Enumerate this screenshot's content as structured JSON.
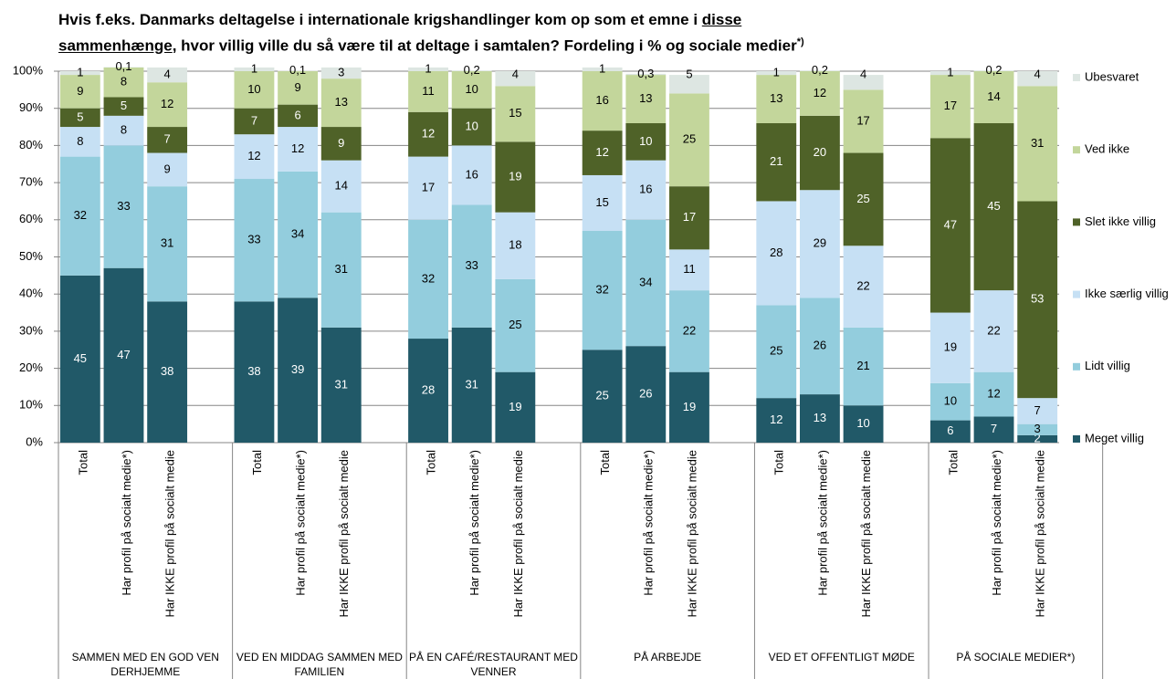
{
  "chart_data": {
    "type": "stacked-bar",
    "title": {
      "pre": "Hvis f.eks. Danmarks deltagelse i internationale krigshandlinger kom op som et emne i ",
      "under1": "disse",
      "under2": "sammenhænge",
      "post": ", hvor villig ville du så være til at deltage i samtalen? Fordeling i % og sociale medier",
      "sup": "*)"
    },
    "groups": [
      "SAMMEN MED EN GOD VEN DERHJEMME",
      "VED EN MIDDAG SAMMEN MED FAMILIEN",
      "PÅ EN CAFÉ/RESTAURANT MED VENNER",
      "PÅ ARBEJDE",
      "VED ET OFFENTLIGT MØDE",
      "PÅ SOCIALE MEDIER*)"
    ],
    "categories": [
      "Total",
      "Har profil på socialt medie*)",
      "Har IKKE profil på socialt medie",
      "Total",
      "Har profil på socialt medie*)",
      "Har IKKE profil på socialt medie",
      "Total",
      "Har profil på socialt medie*)",
      "Har IKKE profil på socialt medie",
      "Total",
      "Har profil på socialt medie*)",
      "Har IKKE profil på socialt medie",
      "Total",
      "Har profil på socialt medie*)",
      "Har IKKE profil på socialt medie",
      "Total",
      "Har profil på socialt medie*)",
      "Har IKKE profil på socialt medie"
    ],
    "series": [
      {
        "name": "Meget villig",
        "color": "#215968",
        "label_color": "#ffffff",
        "values": [
          45,
          47,
          38,
          38,
          39,
          31,
          28,
          31,
          19,
          25,
          26,
          19,
          12,
          13,
          10,
          6,
          7,
          2
        ]
      },
      {
        "name": "Lidt villig",
        "color": "#93cddd",
        "label_color": "#000000",
        "values": [
          32,
          33,
          31,
          33,
          34,
          31,
          32,
          33,
          25,
          32,
          34,
          22,
          25,
          26,
          21,
          10,
          12,
          3
        ]
      },
      {
        "name": "Ikke særlig villig",
        "color": "#c6e0f4",
        "label_color": "#000000",
        "values": [
          8,
          8,
          9,
          12,
          12,
          14,
          17,
          16,
          18,
          15,
          16,
          11,
          28,
          29,
          22,
          19,
          22,
          7
        ]
      },
      {
        "name": "Slet ikke villig",
        "color": "#4f6228",
        "label_color": "#ffffff",
        "values": [
          5,
          5,
          7,
          7,
          6,
          9,
          12,
          10,
          19,
          12,
          10,
          17,
          21,
          20,
          25,
          47,
          45,
          53
        ]
      },
      {
        "name": "Ved ikke",
        "color": "#c3d69b",
        "label_color": "#000000",
        "values": [
          9,
          8,
          12,
          10,
          9,
          13,
          11,
          10,
          15,
          16,
          13,
          25,
          13,
          12,
          17,
          17,
          14,
          31
        ]
      },
      {
        "name": "Ubesvaret",
        "color": "#dde6e2",
        "label_color": "#000000",
        "values": [
          1,
          0.1,
          4,
          1,
          0.1,
          3,
          1,
          0.2,
          4,
          1,
          0.3,
          5,
          1,
          0.2,
          4,
          1,
          0.2,
          4
        ],
        "value_labels": [
          "1",
          "0,1",
          "4",
          "1",
          "0,1",
          "3",
          "1",
          "0,2",
          "4",
          "1",
          "0,3",
          "5",
          "1",
          "0,2",
          "4",
          "1",
          "0,2",
          "4"
        ]
      }
    ],
    "ylim": [
      0,
      100
    ],
    "yticks": [
      {
        "value": 0,
        "label": "0%"
      },
      {
        "value": 10,
        "label": "10%"
      },
      {
        "value": 20,
        "label": "20%"
      },
      {
        "value": 30,
        "label": "30%"
      },
      {
        "value": 40,
        "label": "40%"
      },
      {
        "value": 50,
        "label": "50%"
      },
      {
        "value": 60,
        "label": "60%"
      },
      {
        "value": 70,
        "label": "70%"
      },
      {
        "value": 80,
        "label": "80%"
      },
      {
        "value": 90,
        "label": "90%"
      },
      {
        "value": 100,
        "label": "100%"
      }
    ],
    "grid": true,
    "legend": "right"
  }
}
